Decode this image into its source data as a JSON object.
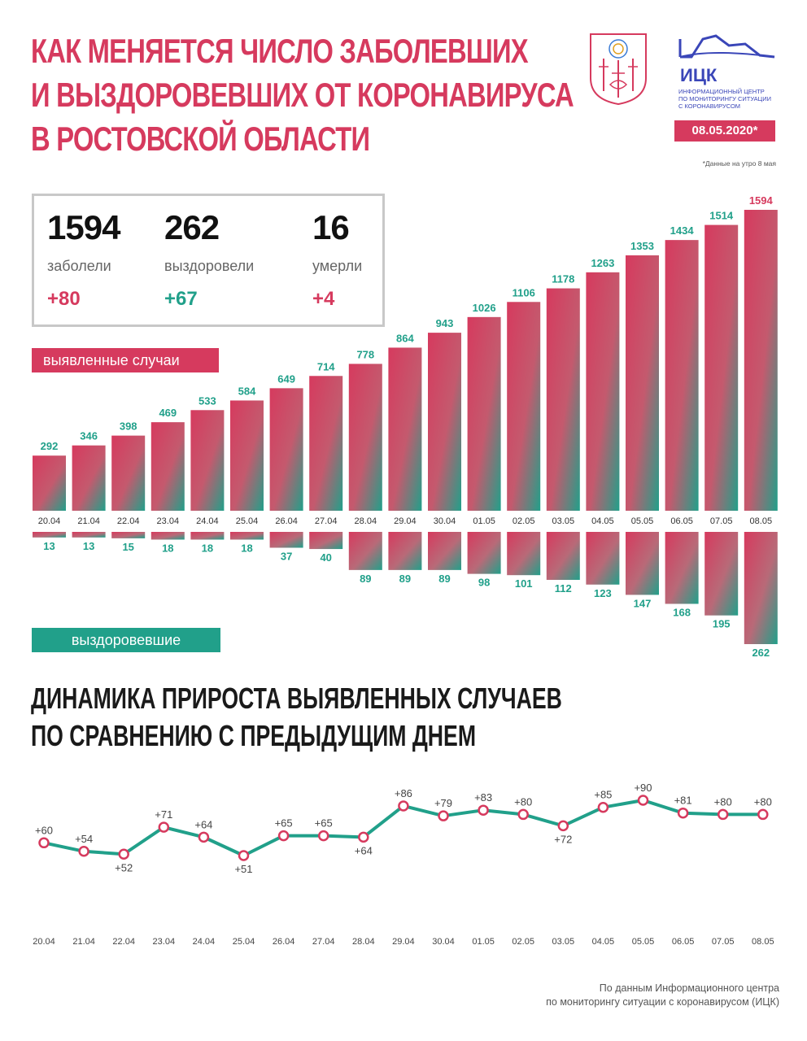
{
  "header": {
    "title_lines": [
      "КАК МЕНЯЕТСЯ ЧИСЛО ЗАБОЛЕВШИХ",
      "И ВЫЗДОРОВЕВШИХ ОТ КОРОНАВИРУСА",
      "В РОСТОВСКОЙ ОБЛАСТИ"
    ],
    "logo_abbr": "ИЦК",
    "logo_lines": [
      "ИНФОРМАЦИОННЫЙ ЦЕНТР",
      "ПО МОНИТОРИНГУ СИТУАЦИИ",
      "С КОРОНАВИРУСОМ"
    ],
    "date": "08.05.2020*",
    "date_note": "*Данные на утро 8 мая"
  },
  "summary": [
    {
      "value": "1594",
      "label": "заболели",
      "delta": "+80",
      "color": "#d63a5e"
    },
    {
      "value": "262",
      "label": "выздоровели",
      "delta": "+67",
      "color": "#21a08a"
    },
    {
      "value": "16",
      "label": "умерли",
      "delta": "+4",
      "color": "#d63a5e"
    }
  ],
  "legend": {
    "detected": "выявленные случаи",
    "recovered": "выздоровевшие"
  },
  "subtitle_lines": [
    "ДИНАМИКА ПРИРОСТА ВЫЯВЛЕННЫХ СЛУЧАЕВ",
    "ПО СРАВНЕНИЮ С ПРЕДЫДУЩИМ ДНЕМ"
  ],
  "source_lines": [
    "По данным Информационного центра",
    "по мониторингу ситуации с коронавирусом (ИЦК)"
  ],
  "colors": {
    "red": "#d63a5e",
    "green": "#21a08a"
  },
  "chart_data": [
    {
      "type": "bar",
      "categories": [
        "20.04",
        "21.04",
        "22.04",
        "23.04",
        "24.04",
        "25.04",
        "26.04",
        "27.04",
        "28.04",
        "29.04",
        "30.04",
        "01.05",
        "02.05",
        "03.05",
        "04.05",
        "05.05",
        "06.05",
        "07.05",
        "08.05"
      ],
      "series": [
        {
          "name": "выявленные случаи",
          "values": [
            292,
            346,
            398,
            469,
            533,
            584,
            649,
            714,
            778,
            864,
            943,
            1026,
            1106,
            1178,
            1263,
            1353,
            1434,
            1514,
            1594
          ]
        },
        {
          "name": "выздоровевшие",
          "values": [
            13,
            13,
            15,
            18,
            18,
            18,
            37,
            40,
            89,
            89,
            89,
            98,
            101,
            112,
            123,
            147,
            168,
            195,
            262
          ]
        }
      ]
    },
    {
      "type": "line",
      "title": "ДИНАМИКА ПРИРОСТА ВЫЯВЛЕННЫХ СЛУЧАЕВ ПО СРАВНЕНИЮ С ПРЕДЫДУЩИМ ДНЕМ",
      "categories": [
        "20.04",
        "21.04",
        "22.04",
        "23.04",
        "24.04",
        "25.04",
        "26.04",
        "27.04",
        "28.04",
        "29.04",
        "30.04",
        "01.05",
        "02.05",
        "03.05",
        "04.05",
        "05.05",
        "06.05",
        "07.05",
        "08.05"
      ],
      "values": [
        60,
        54,
        52,
        71,
        64,
        51,
        65,
        65,
        64,
        86,
        79,
        83,
        80,
        72,
        85,
        90,
        81,
        80,
        80
      ],
      "labels": [
        "+60",
        "+54",
        "+52",
        "+71",
        "+64",
        "+51",
        "+65",
        "+65",
        "+64",
        "+86",
        "+79",
        "+83",
        "+80",
        "+72",
        "+85",
        "+90",
        "+81",
        "+80",
        "+80"
      ],
      "label_pos": [
        "above",
        "above",
        "below",
        "above",
        "above",
        "below",
        "above",
        "above",
        "below",
        "above",
        "above",
        "above",
        "above",
        "below",
        "above",
        "above",
        "above",
        "above",
        "above"
      ]
    }
  ]
}
